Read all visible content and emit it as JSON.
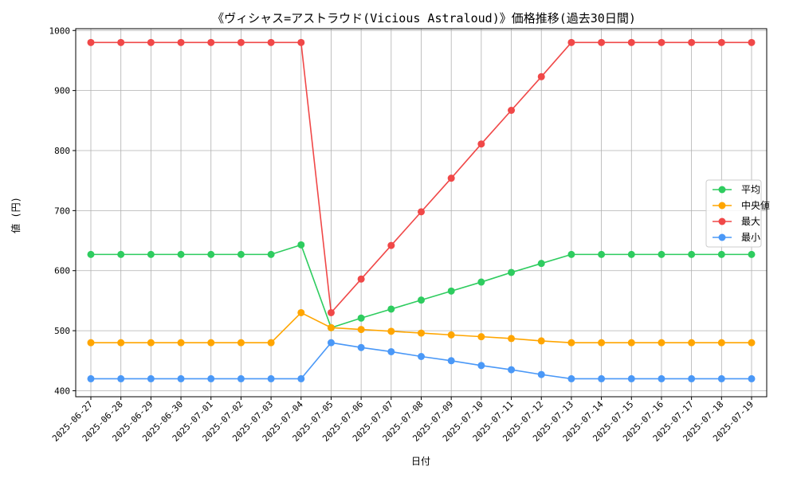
{
  "chart_data": {
    "type": "line",
    "title": "《ヴィシャス=アストラウド(Vicious Astraloud)》価格推移(過去30日間)",
    "xlabel": "日付",
    "ylabel": "値 (円)",
    "ylim": [
      390,
      1003
    ],
    "yticks": [
      400,
      500,
      600,
      700,
      800,
      900,
      1000
    ],
    "grid": true,
    "legend_position": "center-right",
    "categories": [
      "2025-06-27",
      "2025-06-28",
      "2025-06-29",
      "2025-06-30",
      "2025-07-01",
      "2025-07-02",
      "2025-07-03",
      "2025-07-04",
      "2025-07-05",
      "2025-07-06",
      "2025-07-07",
      "2025-07-08",
      "2025-07-09",
      "2025-07-10",
      "2025-07-11",
      "2025-07-12",
      "2025-07-13",
      "2025-07-14",
      "2025-07-15",
      "2025-07-16",
      "2025-07-17",
      "2025-07-18",
      "2025-07-19"
    ],
    "series": [
      {
        "name": "平均",
        "color": "#2ecc5f",
        "values": [
          627,
          627,
          627,
          627,
          627,
          627,
          627,
          643,
          505,
          521,
          536,
          551,
          566,
          581,
          597,
          612,
          627,
          627,
          627,
          627,
          627,
          627,
          627
        ]
      },
      {
        "name": "中央値",
        "color": "#ffa500",
        "values": [
          480,
          480,
          480,
          480,
          480,
          480,
          480,
          530,
          505,
          502,
          499,
          496,
          493,
          490,
          487,
          483,
          480,
          480,
          480,
          480,
          480,
          480,
          480
        ]
      },
      {
        "name": "最大",
        "color": "#f04848",
        "values": [
          980,
          980,
          980,
          980,
          980,
          980,
          980,
          980,
          530,
          586,
          642,
          698,
          754,
          811,
          867,
          923,
          980,
          980,
          980,
          980,
          980,
          980,
          980
        ]
      },
      {
        "name": "最小",
        "color": "#4a98f7",
        "values": [
          420,
          420,
          420,
          420,
          420,
          420,
          420,
          420,
          480,
          472,
          465,
          457,
          450,
          442,
          435,
          427,
          420,
          420,
          420,
          420,
          420,
          420,
          420
        ]
      }
    ]
  }
}
